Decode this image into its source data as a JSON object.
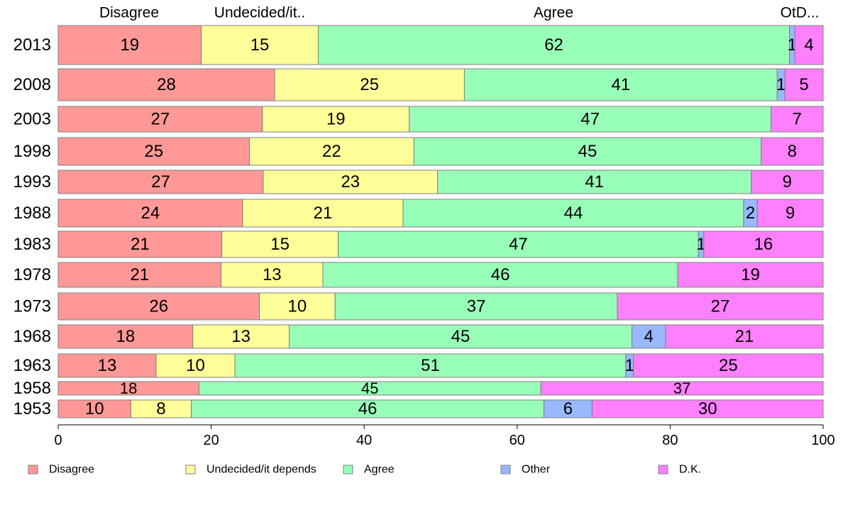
{
  "chart_data": {
    "type": "bar",
    "orientation": "horizontal",
    "stacked": true,
    "categories": [
      "2013",
      "2008",
      "2003",
      "1998",
      "1993",
      "1988",
      "1983",
      "1978",
      "1973",
      "1968",
      "1963",
      "1958",
      "1953"
    ],
    "series": [
      {
        "name": "Disagree",
        "color": "#ff9896",
        "values": [
          18.7,
          28.3,
          26.7,
          25.0,
          26.8,
          24.1,
          21.4,
          21.3,
          26.3,
          17.6,
          12.8,
          18.4,
          9.5
        ]
      },
      {
        "name": "Undecided/it depends",
        "color": "#ffff99",
        "values": [
          15.3,
          24.8,
          19.2,
          21.5,
          22.8,
          21.0,
          15.2,
          13.3,
          9.9,
          12.6,
          10.3,
          0,
          7.9
        ]
      },
      {
        "name": "Agree",
        "color": "#98ffb8",
        "values": [
          61.6,
          40.9,
          47.3,
          45.4,
          41.0,
          44.5,
          47.1,
          46.4,
          36.9,
          44.8,
          51.1,
          44.7,
          46.1
        ]
      },
      {
        "name": "Other",
        "color": "#98b8ff",
        "values": [
          0.7,
          1.0,
          0,
          0,
          0,
          1.8,
          0.7,
          0,
          0,
          4.4,
          1.0,
          0,
          6.3
        ]
      },
      {
        "name": "D.K.",
        "color": "#ff80ff",
        "values": [
          3.7,
          5.0,
          6.8,
          8.1,
          9.4,
          8.6,
          15.6,
          19.0,
          26.9,
          20.6,
          24.8,
          36.9,
          30.2
        ]
      }
    ],
    "data_labels": [
      [
        "19",
        "15",
        "62",
        "1",
        "4"
      ],
      [
        "28",
        "25",
        "41",
        "1",
        "5"
      ],
      [
        "27",
        "19",
        "47",
        "",
        "7"
      ],
      [
        "25",
        "22",
        "45",
        "",
        "8"
      ],
      [
        "27",
        "23",
        "41",
        "",
        "9"
      ],
      [
        "24",
        "21",
        "44",
        "2",
        "9"
      ],
      [
        "21",
        "15",
        "47",
        "1",
        "16"
      ],
      [
        "21",
        "13",
        "46",
        "",
        "19"
      ],
      [
        "26",
        "10",
        "37",
        "",
        "27"
      ],
      [
        "18",
        "13",
        "45",
        "4",
        "21"
      ],
      [
        "13",
        "10",
        "51",
        "1",
        "25"
      ],
      [
        "18",
        "",
        "45",
        "",
        "37"
      ],
      [
        "10",
        "8",
        "46",
        "6",
        "30"
      ]
    ],
    "top_labels": [
      "Disagree",
      "Undecided/it..",
      "Agree",
      "OtD..."
    ],
    "x_ticks": [
      0,
      20,
      40,
      60,
      80,
      100
    ],
    "xlim": [
      0,
      100
    ],
    "title": "",
    "xlabel": "",
    "ylabel": "",
    "grid": false,
    "legend": {
      "position": "bottom",
      "entries": [
        "Disagree",
        "Undecided/it depends",
        "Agree",
        "Other",
        "D.K."
      ]
    }
  }
}
